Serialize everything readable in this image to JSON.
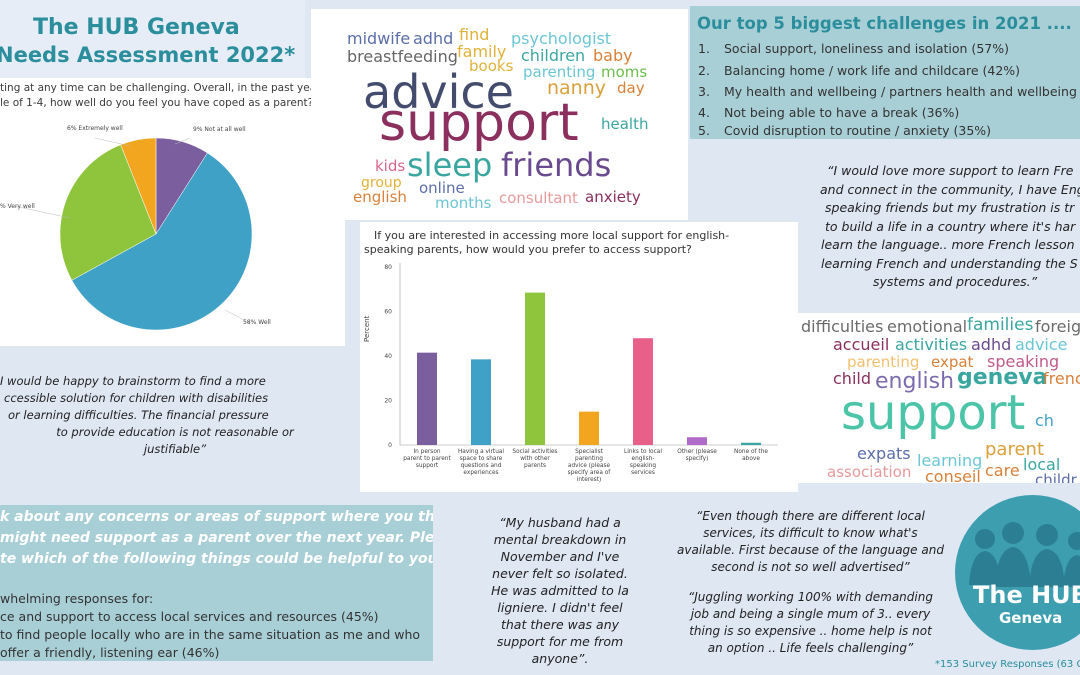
{
  "title": {
    "line1": "The HUB Geneva",
    "line2": "Needs Assessment 2022*"
  },
  "pie": {
    "question_line1": "ting at any time can be challenging.  Overall, in the past year,",
    "question_line2": "le of 1-4, how well do you feel you have coped as a parent?",
    "labels": {
      "extremely": "6% Extremely well",
      "not_at_all": "9% Not at all well",
      "very": "% Very well",
      "well": "58% Well"
    },
    "colors": {
      "not_at_all": "#7a5e9e",
      "well": "#3fa1c6",
      "very": "#8fc53d",
      "extremely": "#f2a620"
    }
  },
  "chart_data": {
    "type": "pie",
    "categories": [
      "Not at all well",
      "Well",
      "Very well",
      "Extremely well"
    ],
    "values": [
      9,
      58,
      27,
      6
    ],
    "title": "",
    "legend": "labels on slices"
  },
  "wordcloud_top": {
    "words": [
      {
        "text": "midwife",
        "color": "#5b6ea8"
      },
      {
        "text": "adhd",
        "color": "#5b6ea8"
      },
      {
        "text": "find",
        "color": "#e0b23a"
      },
      {
        "text": "psychologist",
        "color": "#6bc6d4"
      },
      {
        "text": "breastfeeding",
        "color": "#666666"
      },
      {
        "text": "family",
        "color": "#e0b23a"
      },
      {
        "text": "children",
        "color": "#3aa6a0"
      },
      {
        "text": "baby",
        "color": "#d9813a"
      },
      {
        "text": "books",
        "color": "#e0b23a"
      },
      {
        "text": "parenting",
        "color": "#6bc6d4"
      },
      {
        "text": "moms",
        "color": "#6abf4b"
      },
      {
        "text": "advice",
        "color": "#444c6e"
      },
      {
        "text": "nanny",
        "color": "#d9a03a"
      },
      {
        "text": "day",
        "color": "#d9813a"
      },
      {
        "text": "support",
        "color": "#8a2f5e"
      },
      {
        "text": "health",
        "color": "#3aa6a0"
      },
      {
        "text": "kids",
        "color": "#d9668a"
      },
      {
        "text": "sleep",
        "color": "#3aa6a0"
      },
      {
        "text": "friends",
        "color": "#6a4a8e"
      },
      {
        "text": "group",
        "color": "#e0b23a"
      },
      {
        "text": "online",
        "color": "#5b6ea8"
      },
      {
        "text": "english",
        "color": "#d9813a"
      },
      {
        "text": "months",
        "color": "#6bc6d4"
      },
      {
        "text": "consultant",
        "color": "#e59a9a"
      },
      {
        "text": "anxiety",
        "color": "#8a2f5e"
      }
    ]
  },
  "challenges": {
    "title": "Our top 5 biggest challenges in 2021 ....",
    "items": [
      {
        "n": "1.",
        "text": "Social support, loneliness and isolation (57%)"
      },
      {
        "n": "2.",
        "text": "Balancing home / work life and childcare (42%)"
      },
      {
        "n": "3.",
        "text": "My health and wellbeing / partners health and wellbeing"
      },
      {
        "n": "4.",
        "text": "Not being able to have a break (36%)"
      },
      {
        "n": "5.",
        "text": "Covid disruption to routine / anxiety (35%)"
      }
    ]
  },
  "quote_french": {
    "lines": [
      "“I would love more support to learn Fre",
      "and connect in the community, I have Eng",
      "speaking friends but my frustration is tr",
      "to build a life in a country where it's har",
      "learn the language.. more French lesson",
      "learning French and understanding the S",
      "systems and procedures.”"
    ]
  },
  "bar_chart": {
    "question_line1": "If you are interested in accessing more local support for english-",
    "question_line2": "speaking parents, how would you prefer to access support?",
    "ylabel": "Percent",
    "yticks": [
      "0",
      "20",
      "40",
      "60",
      "80"
    ],
    "categories": [
      [
        "In person",
        "parent to parent",
        "support"
      ],
      [
        "Having a virtual",
        "space to share",
        "questions and",
        "experiences"
      ],
      [
        "Social activities",
        "with other",
        "parents"
      ],
      [
        "Specialist",
        "parenting",
        "advice (please",
        "specify area of",
        "interest)"
      ],
      [
        "Links to local",
        "english-",
        "speaking",
        "services"
      ],
      [
        "Other (please",
        "specify)"
      ],
      [
        "None of the",
        "above"
      ]
    ],
    "values": [
      41.5,
      38.5,
      68.5,
      15,
      48,
      3.5,
      1
    ],
    "colors": [
      "#7a5e9e",
      "#3fa1c6",
      "#8fc53d",
      "#f2a620",
      "#e8608a",
      "#b06ac8",
      "#3aa6a0"
    ]
  },
  "quote_brainstorm": {
    "lines": [
      "I would be happy to brainstorm to find a more",
      "ccessible solution for children with disabilities",
      "or learning difficulties. The financial pressure",
      "to provide education is not reasonable or",
      "justifiable”"
    ]
  },
  "wordcloud_bottom": {
    "words": [
      {
        "text": "difficulties",
        "color": "#6b6b6b"
      },
      {
        "text": "emotional",
        "color": "#6b6b6b"
      },
      {
        "text": "families",
        "color": "#3aa6a0"
      },
      {
        "text": "foreig",
        "color": "#6b6b6b"
      },
      {
        "text": "accueil",
        "color": "#8a2f5e"
      },
      {
        "text": "activities",
        "color": "#3aa6a0"
      },
      {
        "text": "adhd",
        "color": "#6a4a8e"
      },
      {
        "text": "advice",
        "color": "#6bc6d4"
      },
      {
        "text": "parenting",
        "color": "#f0c070"
      },
      {
        "text": "expat",
        "color": "#d9813a"
      },
      {
        "text": "speaking",
        "color": "#c05a8a"
      },
      {
        "text": "child",
        "color": "#8a2f5e"
      },
      {
        "text": "english",
        "color": "#7d6bb0"
      },
      {
        "text": "geneva",
        "color": "#3aa6a0"
      },
      {
        "text": "frenc",
        "color": "#d9813a"
      },
      {
        "text": "support",
        "color": "#4bc4a8"
      },
      {
        "text": "ch",
        "color": "#3fa1c6"
      },
      {
        "text": "expats",
        "color": "#5b6ea8"
      },
      {
        "text": "parent",
        "color": "#d9a03a"
      },
      {
        "text": "learning",
        "color": "#6bc6d4"
      },
      {
        "text": "local",
        "color": "#3aa6a0"
      },
      {
        "text": "association",
        "color": "#e59a9a"
      },
      {
        "text": "conseil",
        "color": "#d9813a"
      },
      {
        "text": "care",
        "color": "#d9813a"
      },
      {
        "text": "childr",
        "color": "#5b6ea8"
      }
    ]
  },
  "concerns": {
    "q_line1": "k about any concerns or areas of support where you think",
    "q_line2": "might need support as a parent over the next year. Please",
    "q_line3": "te which of the following things could be helpful to you”",
    "r_line1": "whelming responses for:",
    "r_line2": "ce and support to access local services and resources (45%)",
    "r_line3": "to find people locally who are in the same situation as me and who",
    "r_line4": "offer a friendly, listening ear (46%)"
  },
  "quote_husband": {
    "lines": [
      "“My husband had a",
      "mental breakdown in",
      "November and I've",
      "never felt so isolated.",
      "He was admitted to la",
      "ligniere. I didn't feel",
      "that there was any",
      "support for me from",
      "anyone”."
    ]
  },
  "quote_services": {
    "lines": [
      "“Even though there are different local",
      "services, its difficult to know what's",
      "available. First because of the language and",
      "second is not so well advertised”"
    ]
  },
  "quote_juggling": {
    "lines": [
      "“Juggling working 100% with demanding",
      "job and being a single mum of 3.. every",
      "thing is so expensive .. home help is not",
      "an option .. Life feels challenging”"
    ]
  },
  "logo": {
    "line1": "The HUB",
    "line2": "Geneva"
  },
  "footnote": "*153 Survey Responses (63 C"
}
